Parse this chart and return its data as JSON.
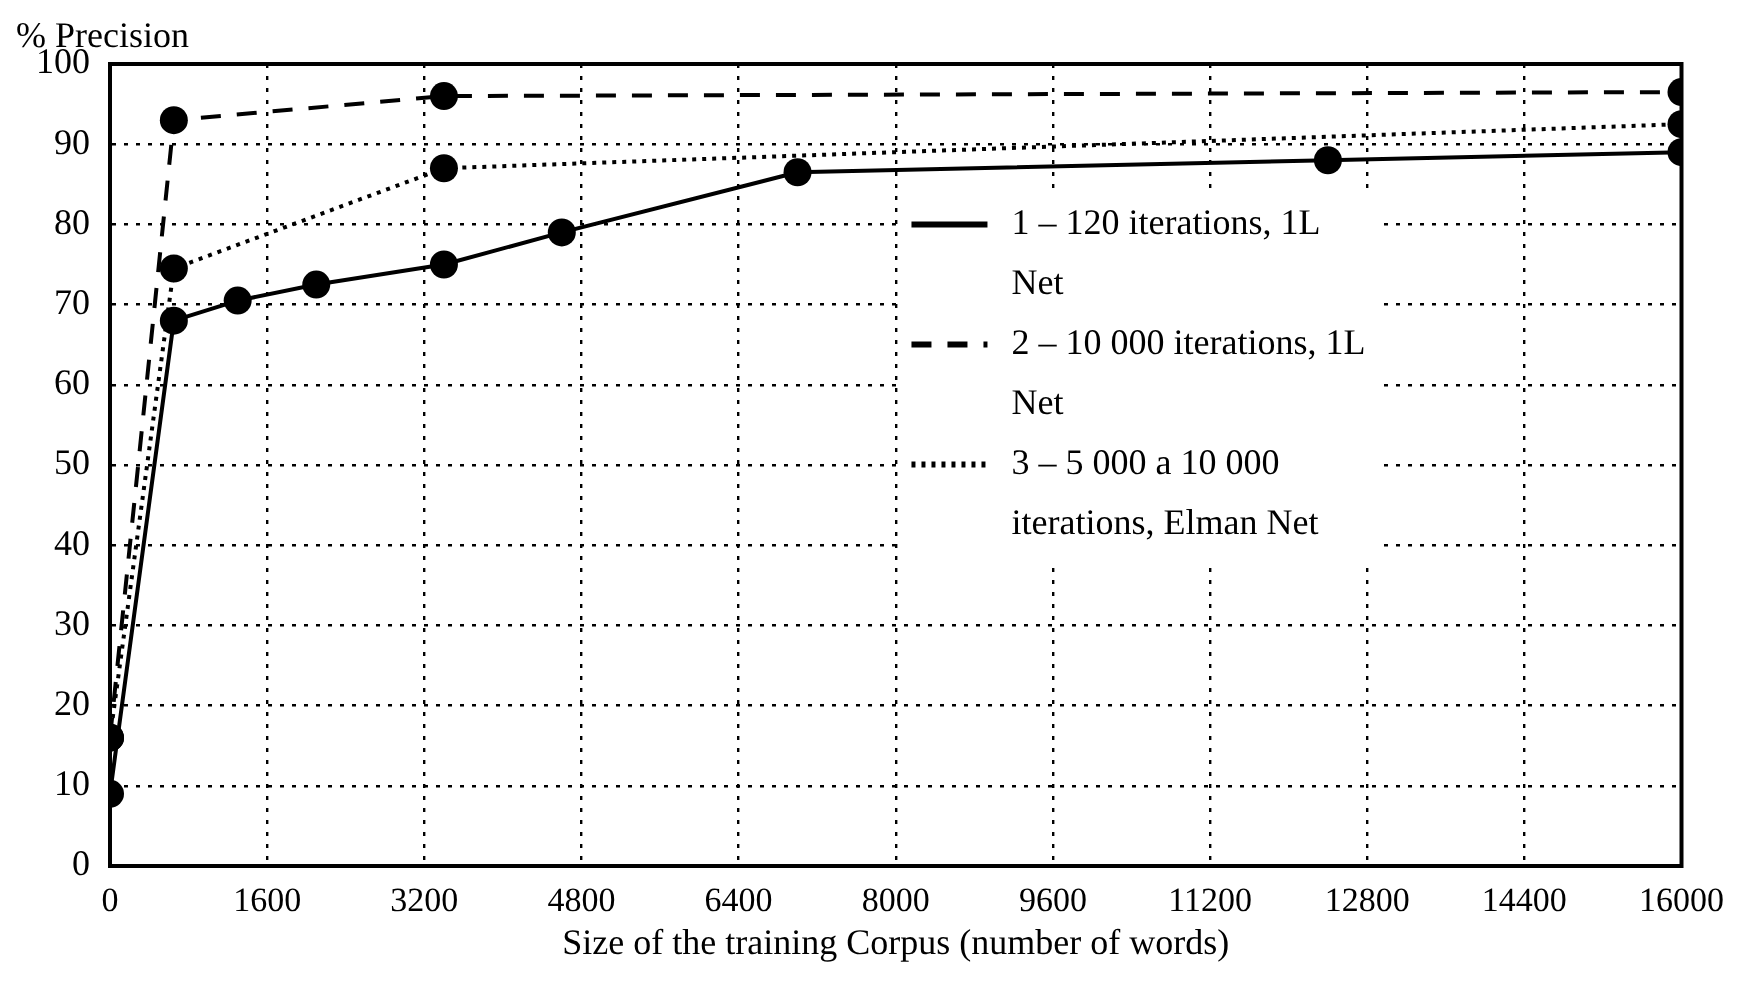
{
  "chart_data": {
    "type": "line",
    "ylabel": "% Precision",
    "xlabel": "Size of the training Corpus (number of words)",
    "xlim": [
      0,
      16000
    ],
    "xticks": [
      0,
      1600,
      3200,
      4800,
      6400,
      8000,
      9600,
      11200,
      12800,
      14400,
      16000
    ],
    "ylim": [
      0,
      100
    ],
    "yticks": [
      0,
      10,
      20,
      30,
      40,
      50,
      60,
      70,
      80,
      90,
      100
    ],
    "grid": true,
    "legend": "right",
    "marker": "circle",
    "series": [
      {
        "name": "1 – 120 iterations, 1L Net",
        "color": "#000000",
        "line_style": "solid",
        "x": [
          0,
          650,
          1300,
          2100,
          3400,
          4600,
          7000,
          12400,
          16000
        ],
        "values": [
          9,
          68,
          70.5,
          72.5,
          75,
          79,
          86.5,
          88,
          89
        ]
      },
      {
        "name": "2 – 10 000 iterations, 1L Net",
        "color": "#000000",
        "line_style": "dashed",
        "x": [
          0,
          650,
          3400,
          16000
        ],
        "values": [
          16,
          93,
          96,
          96.5
        ]
      },
      {
        "name": "3 – 5 000 a 10 000 iterations, Elman Net",
        "color": "#000000",
        "line_style": "dotted",
        "x": [
          0,
          650,
          3400,
          16000
        ],
        "values": [
          16,
          74.5,
          87,
          92.5
        ]
      }
    ]
  }
}
